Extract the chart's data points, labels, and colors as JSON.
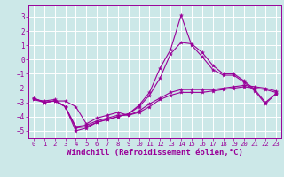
{
  "background_color": "#cce8e8",
  "grid_color": "#ffffff",
  "line_color": "#990099",
  "xlabel": "Windchill (Refroidissement éolien,°C)",
  "xlabel_fontsize": 6.5,
  "xtick_fontsize": 5.2,
  "ytick_fontsize": 5.5,
  "ylim": [
    -5.5,
    3.8
  ],
  "xlim": [
    -0.5,
    23.5
  ],
  "xticks": [
    0,
    1,
    2,
    3,
    4,
    5,
    6,
    7,
    8,
    9,
    10,
    11,
    12,
    13,
    14,
    15,
    16,
    17,
    18,
    19,
    20,
    21,
    22,
    23
  ],
  "yticks": [
    -5,
    -4,
    -3,
    -2,
    -1,
    0,
    1,
    2,
    3
  ],
  "series": [
    {
      "x": [
        0,
        1,
        2,
        3,
        4,
        5,
        6,
        7,
        8,
        9,
        10,
        11,
        12,
        13,
        14,
        15,
        16,
        17,
        18,
        19,
        20,
        21,
        22,
        23
      ],
      "y": [
        -2.7,
        -3.0,
        -2.9,
        -2.9,
        -3.3,
        -4.5,
        -4.1,
        -3.9,
        -3.7,
        -3.9,
        -3.6,
        -3.1,
        -2.7,
        -2.3,
        -2.1,
        -2.1,
        -2.1,
        -2.1,
        -2.0,
        -1.9,
        -1.8,
        -1.9,
        -2.0,
        -2.2
      ]
    },
    {
      "x": [
        0,
        1,
        2,
        3,
        4,
        5,
        6,
        7,
        8,
        9,
        10,
        11,
        12,
        13,
        14,
        15,
        16,
        17,
        18,
        19,
        20,
        21,
        22,
        23
      ],
      "y": [
        -2.7,
        -3.0,
        -2.9,
        -3.3,
        -4.7,
        -4.6,
        -4.3,
        -4.1,
        -3.9,
        -3.9,
        -3.7,
        -3.3,
        -2.8,
        -2.5,
        -2.3,
        -2.3,
        -2.3,
        -2.2,
        -2.1,
        -2.0,
        -1.9,
        -2.0,
        -2.1,
        -2.3
      ]
    },
    {
      "x": [
        0,
        1,
        2,
        3,
        4,
        5,
        6,
        7,
        8,
        9,
        10,
        11,
        12,
        13,
        14,
        15,
        16,
        17,
        18,
        19,
        20,
        21,
        22,
        23
      ],
      "y": [
        -2.8,
        -3.0,
        -2.9,
        -3.3,
        -4.8,
        -4.7,
        -4.4,
        -4.2,
        -4.0,
        -3.8,
        -3.3,
        -2.5,
        -1.3,
        0.4,
        1.2,
        1.1,
        0.5,
        -0.4,
        -1.0,
        -1.0,
        -1.5,
        -2.1,
        -3.0,
        -2.4
      ]
    },
    {
      "x": [
        0,
        1,
        2,
        3,
        4,
        5,
        6,
        7,
        8,
        9,
        10,
        11,
        12,
        13,
        14,
        15,
        16,
        17,
        18,
        19,
        20,
        21,
        22,
        23
      ],
      "y": [
        -2.8,
        -2.9,
        -2.8,
        -3.3,
        -5.0,
        -4.8,
        -4.4,
        -4.2,
        -4.0,
        -3.8,
        -3.2,
        -2.3,
        -0.6,
        0.7,
        3.1,
        1.0,
        0.2,
        -0.7,
        -1.1,
        -1.1,
        -1.6,
        -2.2,
        -3.1,
        -2.4
      ]
    }
  ]
}
